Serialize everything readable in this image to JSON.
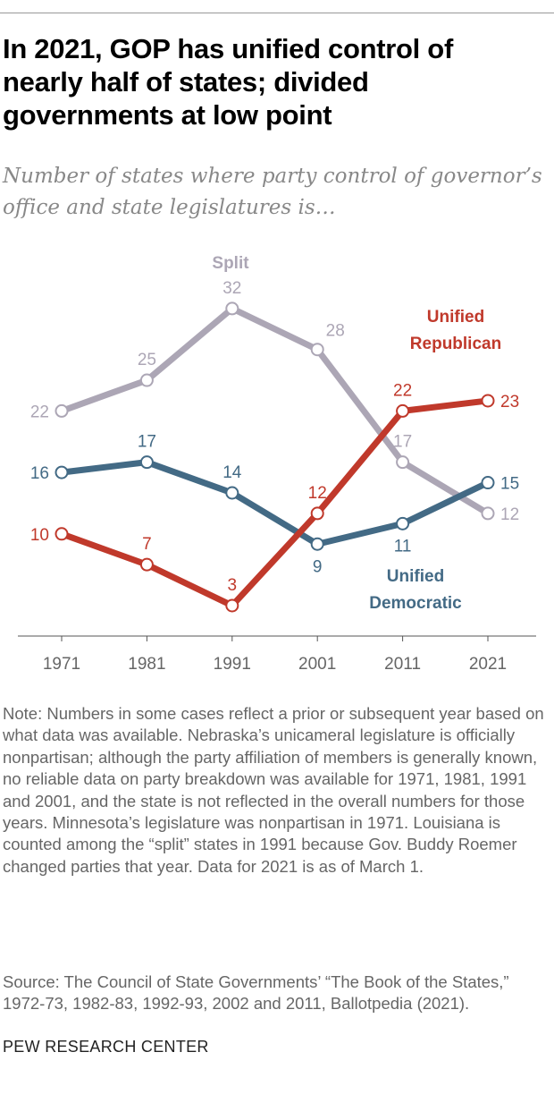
{
  "title": "In 2021, GOP has unified control of nearly half of states; divided governments at low point",
  "subtitle": "Number of states where party control of governor’s office and state legislatures is…",
  "chart_data": {
    "type": "line",
    "categories": [
      "1971",
      "1981",
      "1991",
      "2001",
      "2011",
      "2021"
    ],
    "ylim": [
      0,
      35
    ],
    "grid": false,
    "series": [
      {
        "name": "Split",
        "name_lines": [
          "Split"
        ],
        "color": "#aca6b5",
        "values": [
          22,
          25,
          32,
          28,
          17,
          12
        ]
      },
      {
        "name": "Unified Democratic",
        "name_lines": [
          "Unified",
          "Democratic"
        ],
        "color": "#436a85",
        "values": [
          16,
          17,
          14,
          9,
          11,
          15
        ]
      },
      {
        "name": "Unified Republican",
        "name_lines": [
          "Unified",
          "Republican"
        ],
        "color": "#c0392b",
        "values": [
          10,
          7,
          3,
          12,
          22,
          23
        ]
      }
    ]
  },
  "note": "Note: Numbers in some cases reflect a prior or subsequent year based on what data was available. Nebraska’s unicameral legislature is officially nonpartisan; although the party affiliation of members is generally known, no reliable data on party breakdown was available for 1971, 1981, 1991 and 2001, and the state is not reflected in the overall numbers for those years. Minnesota’s legislature was nonpartisan in 1971. Louisiana is counted among the “split” states in 1991 because Gov. Buddy Roemer changed parties that year. Data for 2021 is as of March 1.",
  "source": "Source: The Council of State Governments’ “The Book of the States,” 1972-73, 1982-83, 1992-93, 2002 and 2011, Ballotpedia (2021).",
  "brand": "PEW RESEARCH CENTER"
}
